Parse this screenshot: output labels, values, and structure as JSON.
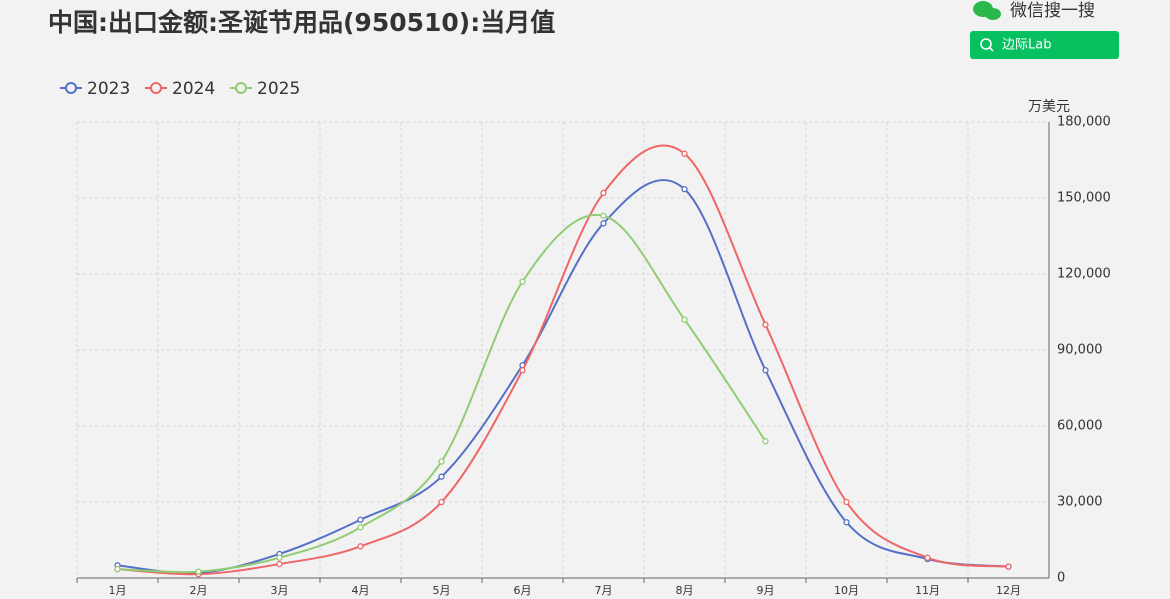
{
  "chart_data": {
    "type": "line",
    "title": "中国:出口金额:圣诞节用品(950510):当月值",
    "y_unit": "万美元",
    "categories": [
      "1月",
      "2月",
      "3月",
      "4月",
      "5月",
      "6月",
      "7月",
      "8月",
      "9月",
      "10月",
      "11月",
      "12月"
    ],
    "series": [
      {
        "name": "2023",
        "color": "#5470c6",
        "values": [
          5000,
          2000,
          9500,
          23000,
          40000,
          84000,
          140000,
          153500,
          82000,
          22000,
          7500,
          4500
        ]
      },
      {
        "name": "2024",
        "color": "#ee6666",
        "values": [
          3500,
          1500,
          5500,
          12500,
          30000,
          82000,
          152000,
          167500,
          100000,
          30000,
          8000,
          4500
        ]
      },
      {
        "name": "2025",
        "color": "#91cc75",
        "values": [
          3500,
          2500,
          8000,
          20000,
          46000,
          117000,
          143000,
          102000,
          54000,
          null,
          null,
          null
        ]
      }
    ],
    "ylim": [
      0,
      180000
    ],
    "yticks": [
      0,
      {
        "value": 30000,
        "label": "30,000"
      },
      {
        "value": 60000,
        "label": "60,000"
      },
      {
        "value": 90000,
        "label": "90,000"
      },
      {
        "value": 120000,
        "label": "120,000"
      },
      {
        "value": 150000,
        "label": "150,000"
      },
      {
        "value": 180000,
        "label": "180,000"
      }
    ],
    "grid": true,
    "smooth": true,
    "legend": "top-left"
  },
  "overlay": {
    "search_label": "微信搜一搜",
    "button": "边际Lab"
  }
}
